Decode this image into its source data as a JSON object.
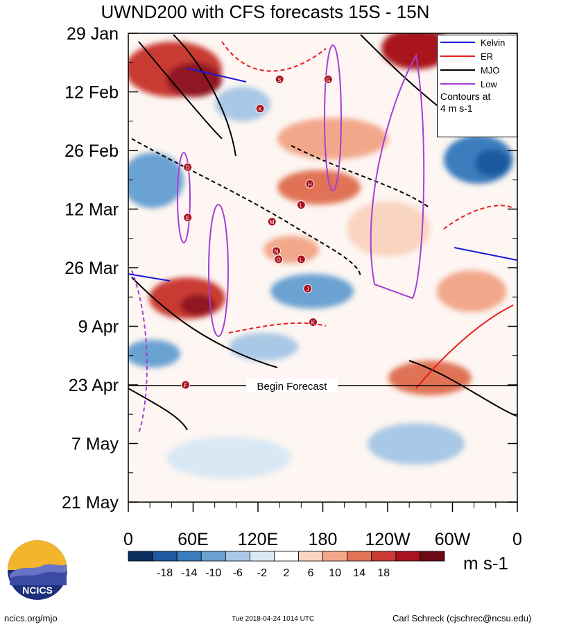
{
  "chart_data": {
    "type": "heatmap",
    "title": "UWND200 with CFS forecasts  15S - 15N",
    "xlabel": "",
    "ylabel": "",
    "x_ticks": [
      "0",
      "60E",
      "120E",
      "180",
      "120W",
      "60W",
      "0"
    ],
    "y_ticks": [
      "29 Jan",
      "12 Feb",
      "26 Feb",
      "12 Mar",
      "26 Mar",
      "9 Apr",
      "23 Apr",
      "7 May",
      "21 May"
    ],
    "forecast_label": "Begin Forecast",
    "colorbar": {
      "values": [
        "-18",
        "-14",
        "-10",
        "-6",
        "-2",
        "2",
        "6",
        "10",
        "14",
        "18"
      ],
      "colors": [
        "#0b2e5e",
        "#1f5aa0",
        "#3a7dbd",
        "#6aa2d2",
        "#a8c8e6",
        "#d8e8f4",
        "#ffffff",
        "#f9d4c0",
        "#f2a78a",
        "#e07356",
        "#c93a32",
        "#a8121e",
        "#6b0a14"
      ],
      "units": "m s-1"
    },
    "legend": {
      "entries": [
        {
          "name": "Kelvin",
          "color": "#1a1ad8"
        },
        {
          "name": "ER",
          "color": "#e81c1c"
        },
        {
          "name": "MJO",
          "color": "#000000"
        },
        {
          "name": "Low",
          "color": "#a53fd6"
        }
      ],
      "note_line1": "Contours at",
      "note_line2": "4 m s-1"
    },
    "storms": [
      {
        "label": "S",
        "lon": 140,
        "days": 11
      },
      {
        "label": "G",
        "lon": 185,
        "days": 11
      },
      {
        "label": "K",
        "lon": 122,
        "days": 18
      },
      {
        "label": "D",
        "lon": 55,
        "days": 32
      },
      {
        "label": "H",
        "lon": 168,
        "days": 36
      },
      {
        "label": "L",
        "lon": 160,
        "days": 41
      },
      {
        "label": "E",
        "lon": 55,
        "days": 44
      },
      {
        "label": "M",
        "lon": 133,
        "days": 45
      },
      {
        "label": "N",
        "lon": 137,
        "days": 52
      },
      {
        "label": "O",
        "lon": 139,
        "days": 54
      },
      {
        "label": "L",
        "lon": 160,
        "days": 54
      },
      {
        "label": "J",
        "lon": 166,
        "days": 61
      },
      {
        "label": "K",
        "lon": 171,
        "days": 69
      },
      {
        "label": "F",
        "lon": 53,
        "days": 84
      }
    ]
  },
  "footer": {
    "left": "ncics.org/mjo",
    "center": "Tue 2018-04-24 1014 UTC",
    "right": "Carl Schreck (cjschrec@ncsu.edu)"
  },
  "logo_text": "NCICS"
}
